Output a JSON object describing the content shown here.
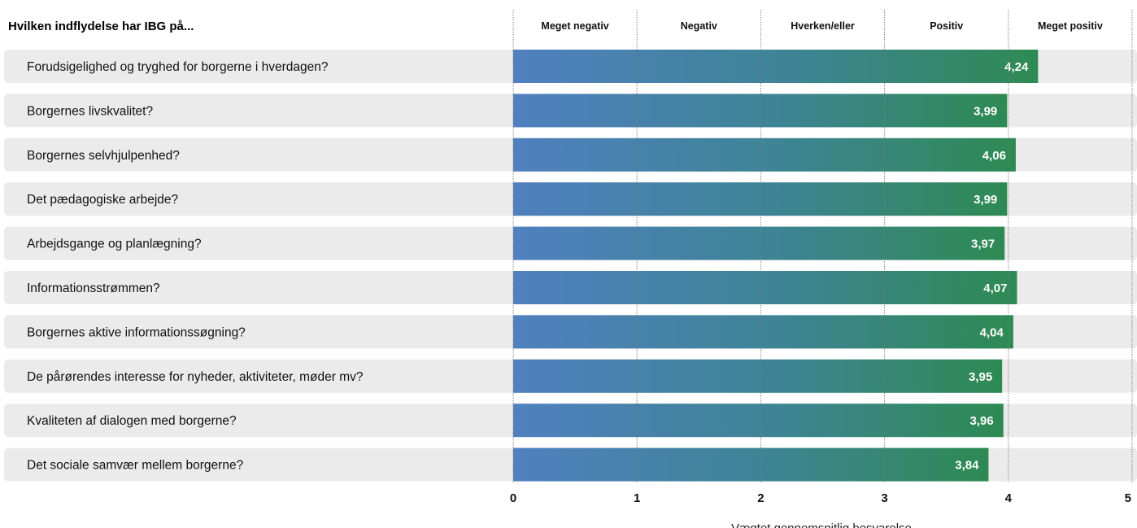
{
  "chart_data": {
    "type": "bar",
    "orientation": "horizontal",
    "title": "Hvilken indflydelse har IBG på...",
    "column_headers": [
      "Meget negativ",
      "Negativ",
      "Hverken/eller",
      "Positiv",
      "Meget positiv"
    ],
    "categories": [
      "Forudsigelighed og tryghed for borgerne i hverdagen?",
      "Borgernes livskvalitet?",
      "Borgernes selvhjulpenhed?",
      "Det pædagogiske arbejde?",
      "Arbejdsgange og planlægning?",
      "Informationsstrømmen?",
      "Borgernes aktive informationssøgning?",
      "De pårørendes interesse for nyheder, aktiviteter, møder mv?",
      "Kvaliteten af dialogen med borgerne?",
      "Det sociale samvær mellem borgerne?"
    ],
    "values": [
      4.24,
      3.99,
      4.06,
      3.99,
      3.97,
      4.07,
      4.04,
      3.95,
      3.96,
      3.84
    ],
    "value_labels": [
      "4,24",
      "3,99",
      "4,06",
      "3,99",
      "3,97",
      "4,07",
      "4,04",
      "3,95",
      "3,96",
      "3,84"
    ],
    "xlim": [
      0,
      5
    ],
    "xticks": [
      "0",
      "1",
      "2",
      "3",
      "4",
      "5"
    ],
    "xlabel": "Vægtet gennemsnitlig besvarelse",
    "gradient_colors": [
      "#5080bf",
      "#2e8a52"
    ],
    "row_background": "#ebebeb"
  }
}
